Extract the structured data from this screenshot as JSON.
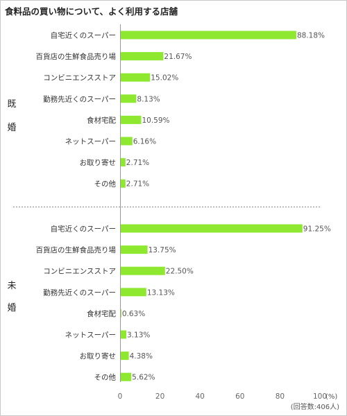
{
  "chart_data": {
    "type": "bar",
    "orientation": "horizontal",
    "title": "食料品の買い物について、よく利用する店舗",
    "categories": [
      "自宅近くのスーパー",
      "百貨店の生鮮食品売り場",
      "コンビニエンスストア",
      "勤務先近くのスーパー",
      "食材宅配",
      "ネットスーパー",
      "お取り寄せ",
      "その他"
    ],
    "groups": [
      {
        "name": "既婚",
        "values": [
          88.18,
          21.67,
          15.02,
          8.13,
          10.59,
          6.16,
          2.71,
          2.71
        ],
        "labels": [
          "88.18%",
          "21.67%",
          "15.02%",
          "8.13%",
          "10.59%",
          "6.16%",
          "2.71%",
          "2.71%"
        ]
      },
      {
        "name": "未婚",
        "values": [
          91.25,
          13.75,
          22.5,
          13.13,
          0.63,
          3.13,
          4.38,
          5.62
        ],
        "labels": [
          "91.25%",
          "13.75%",
          "22.50%",
          "13.13%",
          "0.63%",
          "3.13%",
          "4.38%",
          "5.62%"
        ]
      }
    ],
    "xlim": [
      0,
      100
    ],
    "ticks": [
      0,
      20,
      40,
      60,
      80,
      100
    ],
    "unit_label": "(%)",
    "respondents_note": "(回答数:406人)",
    "bar_color": "#8fe830",
    "grid": false
  }
}
